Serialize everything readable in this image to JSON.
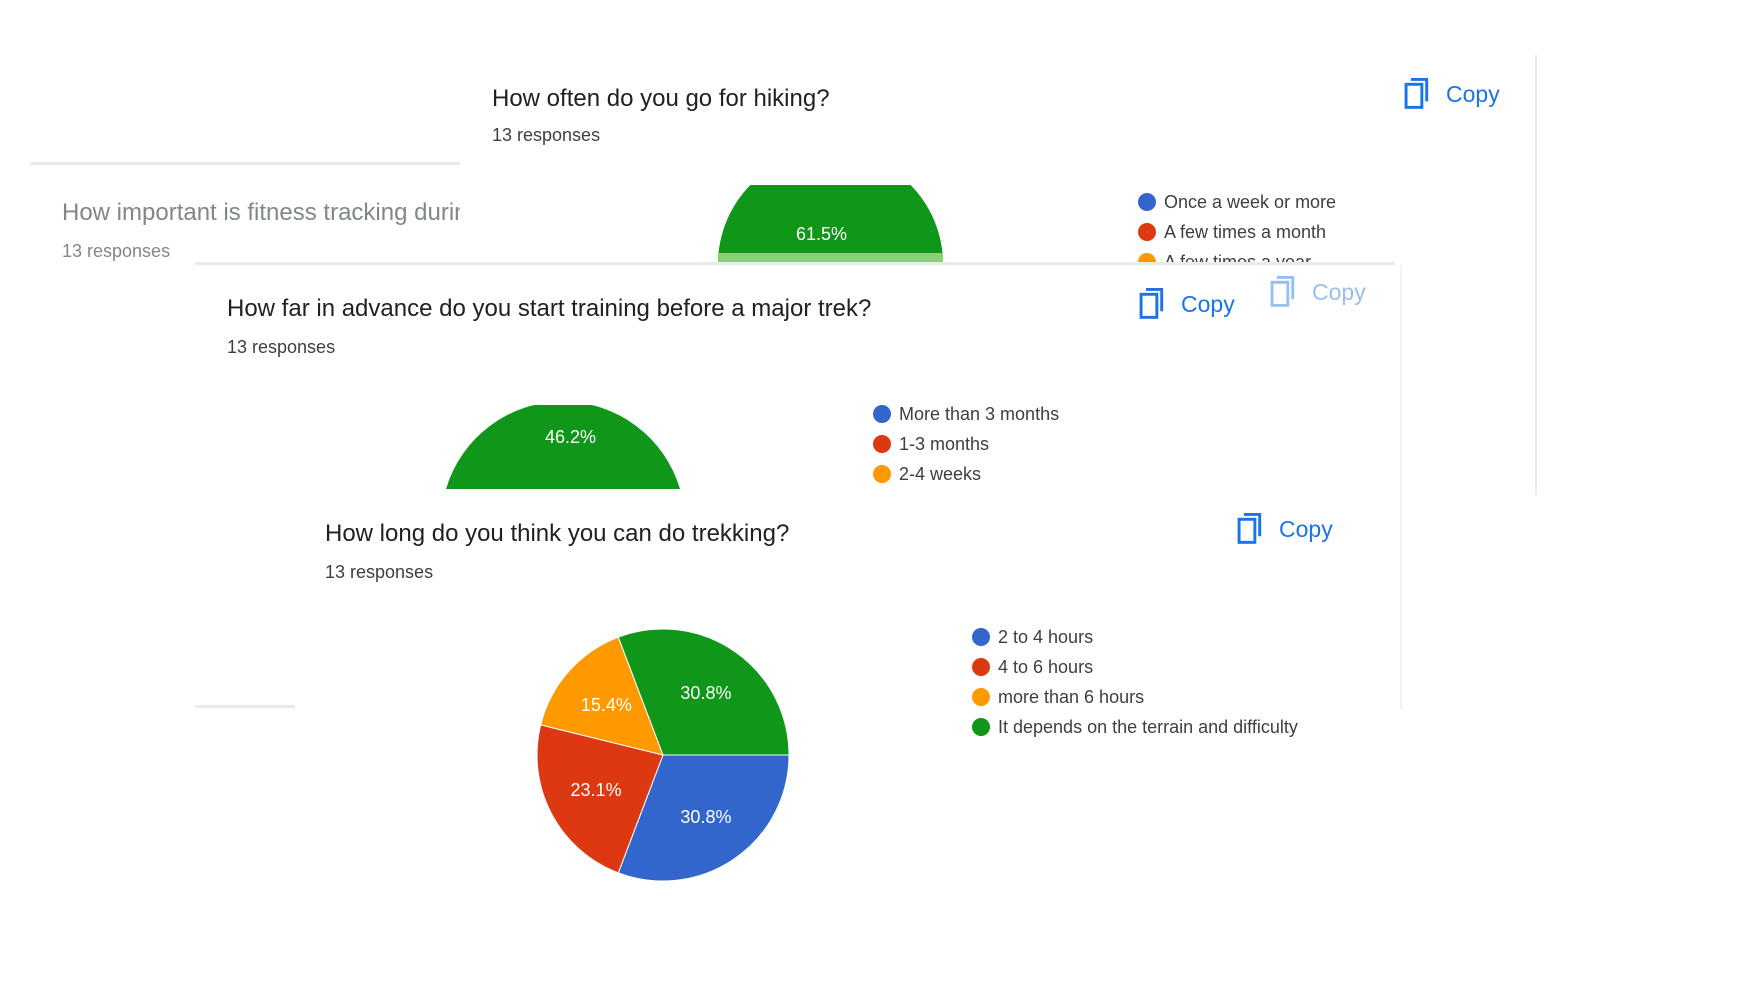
{
  "copy_label": "Copy",
  "colors": {
    "blue": "#3366cc",
    "red": "#dc3912",
    "orange": "#ff9900",
    "green": "#109618",
    "link": "#1a73e8"
  },
  "icons": {
    "copy": "copy-icon",
    "legend": "legend-dot-icon"
  },
  "cards": {
    "fitness": {
      "title": "How important is fitness tracking durin",
      "responses": "13 responses"
    },
    "hiking": {
      "title": "How often do you go for hiking?",
      "responses": "13 responses",
      "legend": [
        "Once a week or more",
        "A few times a month",
        "A few times a year"
      ]
    },
    "training": {
      "title": "How far in advance do you start training before a major trek?",
      "responses": "13 responses",
      "legend": [
        "More than 3 months",
        "1-3 months",
        "2-4 weeks"
      ]
    },
    "trekking": {
      "title": "How long do you think you can do trekking?",
      "responses": "13 responses",
      "legend": [
        "2 to 4 hours",
        "4 to 6 hours",
        "more than 6 hours",
        "It depends on the terrain and difficulty"
      ]
    }
  },
  "chart_data": [
    {
      "type": "pie",
      "title": "How long do you think you can do trekking?",
      "categories": [
        "2 to 4 hours",
        "4 to 6 hours",
        "more than 6 hours",
        "It depends on the terrain and difficulty"
      ],
      "values": [
        30.8,
        23.1,
        15.4,
        30.8
      ],
      "value_labels": [
        "30.8%",
        "23.1%",
        "15.4%",
        "30.8%"
      ],
      "colors": [
        "#3366cc",
        "#dc3912",
        "#ff9900",
        "#109618"
      ],
      "legend": "right"
    },
    {
      "type": "pie",
      "title": "How often do you go for hiking?",
      "categories": [
        "Once a week or more",
        "A few times a month",
        "A few times a year"
      ],
      "visible_slice": {
        "category_color": "#109618",
        "value": 61.5,
        "label": "61.5%"
      },
      "partially_visible": true
    },
    {
      "type": "pie",
      "title": "How far in advance do you start training before a major trek?",
      "categories": [
        "More than 3 months",
        "1-3 months",
        "2-4 weeks"
      ],
      "visible_slice": {
        "category_color": "#109618",
        "value": 46.2,
        "label": "46.2%"
      },
      "partially_visible": true
    }
  ]
}
